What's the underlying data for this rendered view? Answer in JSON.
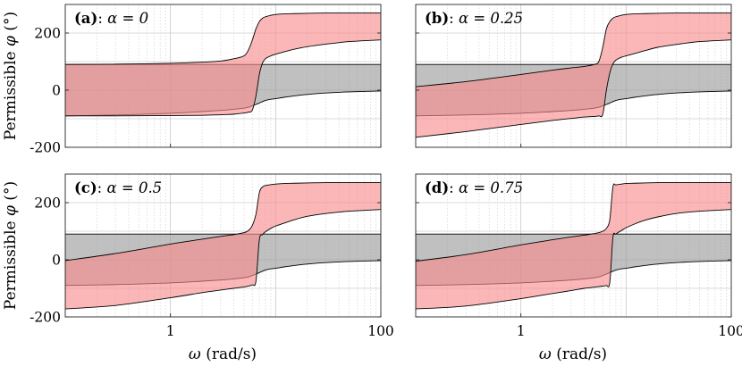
{
  "figure": {
    "shared_ylabel_prefix": "Permissible ",
    "shared_ylabel_symbol": "φ",
    "shared_ylabel_unit": " (°)",
    "shared_xlabel_symbol": "ω",
    "shared_xlabel_unit": " (rad/s)"
  },
  "colors": {
    "grey_region": "#9a9a9a",
    "red_region": "#f88a8a",
    "grid": "#d9d9d9",
    "outline": "#000000"
  },
  "chart_data": [
    {
      "type": "area",
      "panel_label": "(a)",
      "title": "α = 0",
      "alpha": 0,
      "x_scale": "log",
      "xlim": [
        0.1,
        100
      ],
      "ylim": [
        -200,
        300
      ],
      "x_ticks": [
        1,
        100
      ],
      "x_tick_labels": [
        "1",
        "100"
      ],
      "y_ticks": [
        -200,
        0,
        200
      ],
      "y_tick_labels": [
        "-200",
        "0",
        "200"
      ],
      "xlabel": "",
      "ylabel": "Permissible φ (°)",
      "x": [
        0.1,
        0.3,
        1,
        2,
        3,
        4,
        5,
        5.5,
        6,
        6.5,
        7,
        7.5,
        8,
        9,
        10,
        12,
        15,
        20,
        30,
        50,
        100
      ],
      "series": [
        {
          "name": "grey band upper",
          "values": [
            90,
            90,
            90,
            90,
            90,
            90,
            90,
            90,
            90,
            90,
            90,
            90,
            90,
            90,
            90,
            90,
            90,
            90,
            90,
            90,
            90
          ]
        },
        {
          "name": "grey band lower",
          "values": [
            -90,
            -87,
            -81,
            -75,
            -71,
            -67,
            -63,
            -60,
            -55,
            -50,
            -45,
            -40,
            -36,
            -32,
            -30,
            -25,
            -20,
            -15,
            -10,
            -6,
            -3
          ]
        },
        {
          "name": "red band upper",
          "values": [
            90,
            91,
            94,
            98,
            102,
            110,
            120,
            140,
            175,
            215,
            240,
            252,
            257,
            262,
            265,
            267,
            268,
            269,
            270,
            270,
            270
          ]
        },
        {
          "name": "red band lower",
          "values": [
            -90,
            -90,
            -89,
            -88,
            -86,
            -84,
            -80,
            -77,
            -70,
            -20,
            55,
            95,
            110,
            120,
            126,
            134,
            143,
            152,
            161,
            170,
            176
          ]
        }
      ]
    },
    {
      "type": "area",
      "panel_label": "(b)",
      "title": "α = 0.25",
      "alpha": 0.25,
      "x_scale": "log",
      "xlim": [
        0.1,
        100
      ],
      "ylim": [
        -200,
        300
      ],
      "x_ticks": [
        1,
        100
      ],
      "x_tick_labels": [
        "1",
        "100"
      ],
      "y_ticks": [
        -200,
        0,
        200
      ],
      "y_tick_labels": [
        "-200",
        "0",
        "200"
      ],
      "xlabel": "",
      "ylabel": "",
      "x": [
        0.1,
        0.3,
        1,
        2,
        3,
        4,
        5,
        5.5,
        6,
        6.5,
        7,
        7.5,
        8,
        9,
        10,
        12,
        15,
        20,
        30,
        50,
        100
      ],
      "series": [
        {
          "name": "grey band upper",
          "values": [
            90,
            90,
            90,
            90,
            90,
            90,
            90,
            90,
            90,
            90,
            90,
            90,
            90,
            90,
            90,
            90,
            90,
            90,
            90,
            90,
            90
          ]
        },
        {
          "name": "grey band lower",
          "values": [
            -90,
            -87,
            -81,
            -75,
            -71,
            -67,
            -63,
            -60,
            -55,
            -50,
            -45,
            -40,
            -36,
            -32,
            -30,
            -25,
            -20,
            -15,
            -10,
            -6,
            -3
          ]
        },
        {
          "name": "red band upper",
          "values": [
            12,
            30,
            55,
            70,
            78,
            83,
            90,
            100,
            150,
            215,
            240,
            252,
            257,
            262,
            265,
            267,
            268,
            269,
            270,
            270,
            270
          ]
        },
        {
          "name": "red band lower",
          "values": [
            -165,
            -145,
            -120,
            -106,
            -99,
            -94,
            -92,
            -90,
            -85,
            0,
            60,
            92,
            105,
            115,
            120,
            128,
            138,
            150,
            160,
            170,
            176
          ]
        }
      ]
    },
    {
      "type": "area",
      "panel_label": "(c)",
      "title": "α = 0.5",
      "alpha": 0.5,
      "x_scale": "log",
      "xlim": [
        0.1,
        100
      ],
      "ylim": [
        -200,
        300
      ],
      "x_ticks": [
        1,
        100
      ],
      "x_tick_labels": [
        "1",
        "100"
      ],
      "y_ticks": [
        -200,
        0,
        200
      ],
      "y_tick_labels": [
        "-200",
        "0",
        "200"
      ],
      "xlabel": "ω (rad/s)",
      "ylabel": "Permissible φ (°)",
      "x": [
        0.1,
        0.3,
        1,
        2,
        3,
        4,
        5,
        5.5,
        6,
        6.5,
        7,
        7.5,
        8,
        9,
        10,
        12,
        15,
        20,
        30,
        50,
        100
      ],
      "series": [
        {
          "name": "grey band upper",
          "values": [
            90,
            90,
            90,
            90,
            90,
            90,
            90,
            90,
            90,
            90,
            90,
            90,
            90,
            90,
            90,
            90,
            90,
            90,
            90,
            90,
            90
          ]
        },
        {
          "name": "grey band lower",
          "values": [
            -90,
            -87,
            -81,
            -75,
            -71,
            -67,
            -63,
            -60,
            -55,
            -50,
            -45,
            -40,
            -36,
            -32,
            -30,
            -25,
            -20,
            -15,
            -10,
            -6,
            -3
          ]
        },
        {
          "name": "red band upper",
          "values": [
            -3,
            22,
            55,
            72,
            82,
            88,
            95,
            102,
            120,
            160,
            235,
            255,
            260,
            263,
            265,
            267,
            268,
            269,
            270,
            270,
            270
          ]
        },
        {
          "name": "red band lower",
          "values": [
            -172,
            -160,
            -133,
            -115,
            -106,
            -100,
            -95,
            -92,
            -88,
            -75,
            70,
            88,
            98,
            110,
            118,
            128,
            140,
            152,
            162,
            170,
            176
          ]
        }
      ]
    },
    {
      "type": "area",
      "panel_label": "(d)",
      "title": "α = 0.75",
      "alpha": 0.75,
      "x_scale": "log",
      "xlim": [
        0.1,
        100
      ],
      "ylim": [
        -200,
        300
      ],
      "x_ticks": [
        1,
        100
      ],
      "x_tick_labels": [
        "1",
        "100"
      ],
      "y_ticks": [
        -200,
        0,
        200
      ],
      "y_tick_labels": [
        "-200",
        "0",
        "200"
      ],
      "xlabel": "ω (rad/s)",
      "ylabel": "",
      "x": [
        0.1,
        0.3,
        1,
        2,
        3,
        4,
        5,
        5.5,
        6,
        6.5,
        7,
        7.5,
        8,
        9,
        10,
        12,
        15,
        20,
        30,
        50,
        100
      ],
      "series": [
        {
          "name": "grey band upper",
          "values": [
            90,
            90,
            90,
            90,
            90,
            90,
            90,
            90,
            90,
            90,
            90,
            90,
            90,
            90,
            90,
            90,
            90,
            90,
            90,
            90,
            90
          ]
        },
        {
          "name": "grey band lower",
          "values": [
            -90,
            -87,
            -81,
            -75,
            -71,
            -67,
            -63,
            -60,
            -55,
            -50,
            -45,
            -40,
            -36,
            -32,
            -30,
            -25,
            -20,
            -15,
            -10,
            -6,
            -3
          ]
        },
        {
          "name": "red band upper",
          "values": [
            -5,
            18,
            52,
            70,
            80,
            86,
            92,
            95,
            100,
            110,
            140,
            255,
            262,
            265,
            267,
            268,
            269,
            270,
            270,
            270,
            270
          ]
        },
        {
          "name": "red band lower",
          "values": [
            -172,
            -162,
            -136,
            -118,
            -108,
            -100,
            -96,
            -94,
            -92,
            -90,
            -80,
            78,
            90,
            102,
            112,
            125,
            138,
            150,
            162,
            170,
            176
          ]
        }
      ]
    }
  ]
}
